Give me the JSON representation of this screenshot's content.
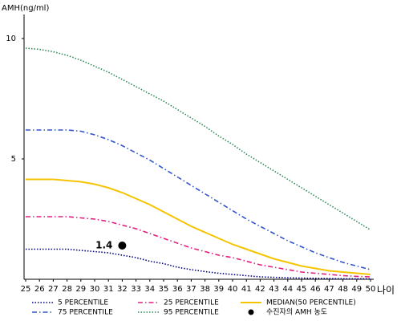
{
  "chart_data": {
    "type": "line",
    "y_label": "AMH(ng/ml)",
    "x_label": "나이",
    "x": [
      25,
      26,
      27,
      28,
      29,
      30,
      31,
      32,
      33,
      34,
      35,
      36,
      37,
      38,
      39,
      40,
      41,
      42,
      43,
      44,
      45,
      46,
      47,
      48,
      49,
      50
    ],
    "xlim": [
      25,
      50
    ],
    "xticks": [
      25,
      26,
      27,
      28,
      29,
      30,
      31,
      32,
      33,
      34,
      35,
      36,
      37,
      38,
      39,
      40,
      41,
      42,
      43,
      44,
      45,
      46,
      47,
      48,
      49,
      50
    ],
    "ylim": [
      0,
      11
    ],
    "yticks": [
      5,
      10
    ],
    "grid": false,
    "legend": "bottom",
    "series": [
      {
        "name": "5 PERCENTILE",
        "color": "#000080",
        "style": "dotted",
        "values": [
          1.25,
          1.25,
          1.25,
          1.25,
          1.2,
          1.15,
          1.1,
          1.0,
          0.9,
          0.75,
          0.65,
          0.5,
          0.4,
          0.32,
          0.25,
          0.2,
          0.15,
          0.1,
          0.08,
          0.06,
          0.05,
          0.04,
          0.03,
          0.02,
          0.02,
          0.02
        ]
      },
      {
        "name": "25 PERCENTILE",
        "color": "#e0207f",
        "style": "dash-dot",
        "values": [
          2.6,
          2.6,
          2.6,
          2.6,
          2.55,
          2.5,
          2.4,
          2.25,
          2.1,
          1.9,
          1.7,
          1.5,
          1.3,
          1.15,
          1.0,
          0.9,
          0.75,
          0.6,
          0.5,
          0.4,
          0.3,
          0.25,
          0.2,
          0.15,
          0.12,
          0.1
        ]
      },
      {
        "name": "MEDIAN(50 PERCENTILE)",
        "color": "#f5c400",
        "style": "solid",
        "values": [
          4.15,
          4.15,
          4.15,
          4.1,
          4.05,
          3.95,
          3.8,
          3.6,
          3.35,
          3.1,
          2.8,
          2.5,
          2.2,
          1.95,
          1.7,
          1.45,
          1.25,
          1.05,
          0.85,
          0.7,
          0.55,
          0.45,
          0.35,
          0.3,
          0.25,
          0.2
        ]
      },
      {
        "name": "75 PERCENTILE",
        "color": "#3355cc",
        "style": "dash-dot",
        "values": [
          6.2,
          6.2,
          6.2,
          6.2,
          6.15,
          6.0,
          5.8,
          5.55,
          5.25,
          4.95,
          4.6,
          4.25,
          3.9,
          3.55,
          3.2,
          2.85,
          2.5,
          2.2,
          1.9,
          1.6,
          1.35,
          1.1,
          0.9,
          0.7,
          0.55,
          0.4
        ]
      },
      {
        "name": "95 PERCENTILE",
        "color": "#2e8b57",
        "style": "dotted",
        "values": [
          9.6,
          9.55,
          9.45,
          9.3,
          9.1,
          8.85,
          8.6,
          8.3,
          8.0,
          7.7,
          7.4,
          7.05,
          6.7,
          6.35,
          5.95,
          5.6,
          5.2,
          4.85,
          4.5,
          4.15,
          3.8,
          3.45,
          3.1,
          2.75,
          2.4,
          2.05
        ]
      }
    ],
    "point": {
      "name": "수진자의 AMH 농도",
      "color": "#000000",
      "x": 32,
      "y": 1.4
    }
  }
}
